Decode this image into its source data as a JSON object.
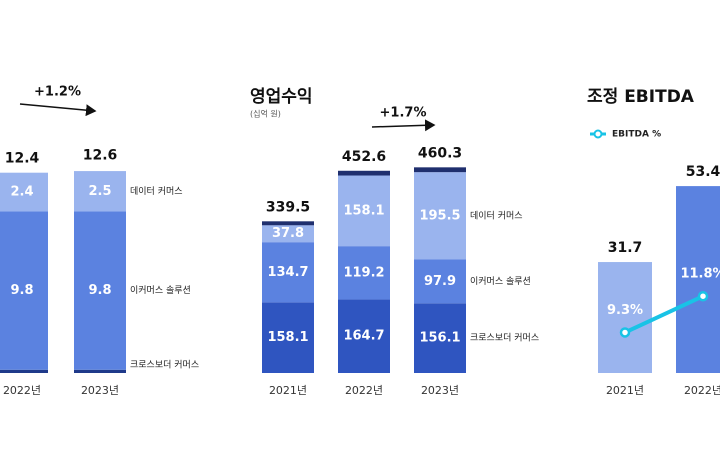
{
  "chart_data": [
    {
      "type": "stacked_bar",
      "categories": [
        "2022년",
        "2023년"
      ],
      "series": [
        {
          "name": "크로스보더 커머스",
          "color": "#1f3a8a",
          "values": [
            0.2,
            0.2
          ]
        },
        {
          "name": "이커머스 솔루션",
          "color": "#5b82e0",
          "values": [
            9.8,
            9.8
          ]
        },
        {
          "name": "데이터 커머스",
          "color": "#9ab4ee",
          "values": [
            2.4,
            2.5
          ]
        }
      ],
      "totals": [
        12.4,
        12.6
      ],
      "annotation": "+1.2%",
      "ylim": [
        0,
        13
      ]
    },
    {
      "type": "stacked_bar",
      "title": "영업수익",
      "subtitle": "(십억 원)",
      "categories": [
        "2021년",
        "2022년",
        "2023년"
      ],
      "series": [
        {
          "name": "크로스보더 커머스",
          "color": "#2f55c0",
          "values": [
            158.1,
            164.7,
            156.1
          ]
        },
        {
          "name": "이커머스 솔루션",
          "color": "#5b82e0",
          "values": [
            134.7,
            119.2,
            97.9
          ]
        },
        {
          "name": "데이터 커머스",
          "color": "#9ab4ee",
          "values": [
            37.8,
            158.1,
            195.5
          ]
        },
        {
          "color": "#1f2f6e",
          "values": [
            8.9,
            10.6,
            10.8
          ]
        }
      ],
      "totals": [
        339.5,
        452.6,
        460.3
      ],
      "annotation": "+1.7%",
      "ylim": [
        0,
        470
      ]
    },
    {
      "type": "bar_line",
      "title": "조정 EBITDA",
      "categories": [
        "2021년",
        "2022년"
      ],
      "bar_colors": [
        "#9ab4ee",
        "#5b82e0"
      ],
      "values": [
        31.7,
        53.4
      ],
      "series": [
        {
          "name": "EBITDA %",
          "color": "#19c3e6",
          "axis": "y2",
          "values": [
            9.3,
            11.8
          ],
          "value_labels": [
            "9.3%",
            "11.8%"
          ]
        }
      ],
      "ylim": [
        0,
        60
      ],
      "y2lim": [
        6.5,
        21
      ]
    }
  ]
}
